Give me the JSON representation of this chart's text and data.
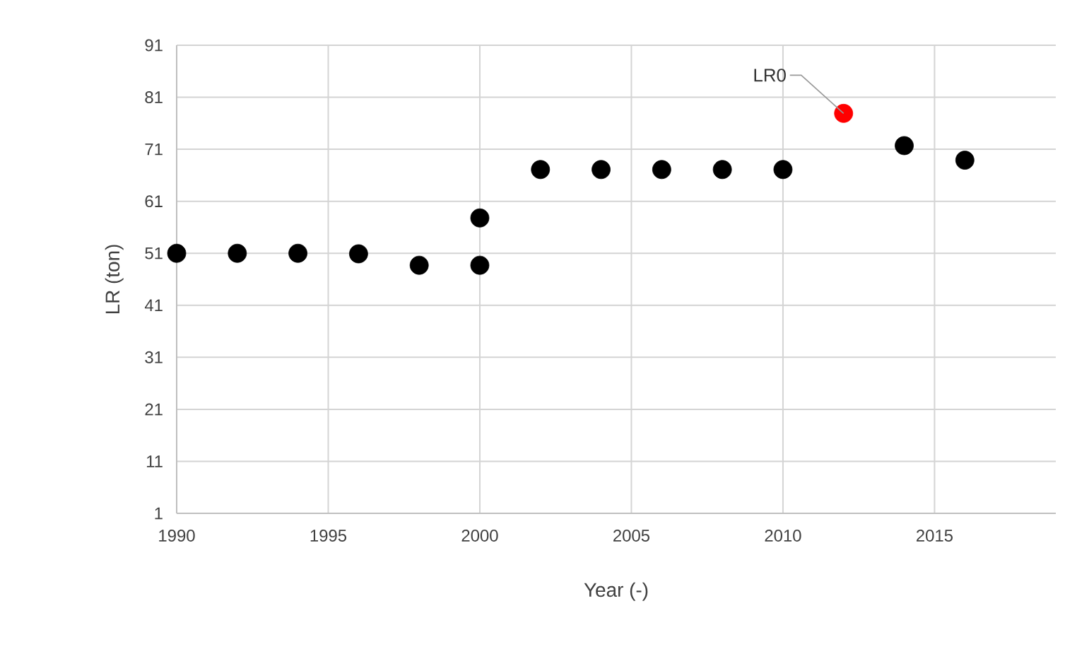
{
  "chart_data": {
    "type": "scatter",
    "xlabel": "Year (-)",
    "ylabel": "LR (ton)",
    "series": [
      {
        "color": "#000000",
        "x": [
          1990,
          1992,
          1994,
          1996,
          1998,
          2000,
          2000,
          2002,
          2004,
          2006,
          2008,
          2010,
          2014,
          2016
        ],
        "values": [
          51,
          51,
          51,
          50.9,
          48.7,
          48.7,
          57.8,
          67.1,
          67.1,
          67.1,
          67.1,
          67.1,
          71.7,
          68.9
        ]
      },
      {
        "color": "#ff0000",
        "x": [
          2012
        ],
        "values": [
          77.9
        ]
      }
    ],
    "annotations": [
      {
        "text": "LR0",
        "x": 2012,
        "y": 77.9
      }
    ],
    "xlim": [
      1990,
      2019
    ],
    "ylim": [
      1,
      91
    ],
    "xticks": [
      1990,
      1995,
      2000,
      2005,
      2010,
      2015
    ],
    "yticks": [
      1,
      11,
      21,
      31,
      41,
      51,
      61,
      71,
      81,
      91
    ],
    "grid": true,
    "marker": "circle"
  }
}
